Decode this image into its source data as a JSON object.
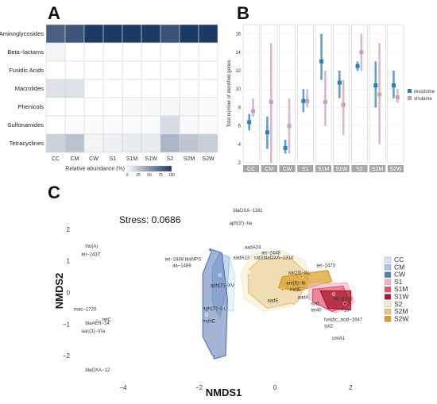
{
  "panels": {
    "a": "A",
    "b": "B",
    "c": "C"
  },
  "colors": {
    "resistome": "#2f7ebc",
    "virulome": "#c9a0bf",
    "groups": {
      "CC": "#d6e6f5",
      "CM": "#a9c4e6",
      "CW": "#5a79b3",
      "S1": "#f3b4bf",
      "S1M": "#e2536b",
      "S1W": "#a5182b",
      "S2": "#f7eccc",
      "S2M": "#e8c585",
      "S2W": "#d79a20"
    }
  },
  "chart_data": [
    {
      "type": "heatmap",
      "panel": "A",
      "columns": [
        "CC",
        "CM",
        "CW",
        "S1",
        "S1M",
        "S1W",
        "S2",
        "S2M",
        "S2W"
      ],
      "rows": [
        "Aminoglycosides",
        "Beta−lactams",
        "Fusidic Acids",
        "Macrolides",
        "Phenicols",
        "Sulfonamides",
        "Tetracyclines"
      ],
      "values": [
        [
          78,
          85,
          100,
          100,
          100,
          100,
          86,
          100,
          100
        ],
        [
          4,
          0,
          0,
          0,
          0,
          0,
          0,
          0,
          0
        ],
        [
          0,
          0,
          0,
          0,
          0,
          0,
          0,
          0,
          0
        ],
        [
          12,
          12,
          0,
          0,
          0,
          0,
          0,
          0,
          0
        ],
        [
          0,
          0,
          0,
          0,
          2,
          2,
          3,
          2,
          1
        ],
        [
          0,
          1,
          1,
          1,
          1,
          1,
          14,
          2,
          1
        ],
        [
          20,
          27,
          4,
          6,
          8,
          8,
          33,
          25,
          21
        ]
      ],
      "legend_title": "Relative abundance (%)",
      "legend_ticks": [
        "0",
        "25",
        "50",
        "75",
        "100"
      ],
      "range": [
        0,
        100
      ]
    },
    {
      "type": "scatter",
      "panel": "B",
      "ylabel": "Total number of identified genes",
      "ylim": [
        2,
        17
      ],
      "yticks": [
        "2",
        "4",
        "6",
        "8",
        "10",
        "12",
        "14",
        "16"
      ],
      "categories": [
        "CC",
        "CM",
        "CW",
        "S1",
        "S1M",
        "S1W",
        "S2",
        "S2M",
        "S2W"
      ],
      "legend": [
        "resistome",
        "virulome"
      ],
      "series": [
        {
          "name": "resistome",
          "mean": [
            6.4,
            5.3,
            3.6,
            8.7,
            13.0,
            10.7,
            12.5,
            10.4,
            10.4
          ],
          "low": [
            5.5,
            3.5,
            3.0,
            7.5,
            11.0,
            9.0,
            12.0,
            8.0,
            9.0
          ],
          "high": [
            7.3,
            7.0,
            4.5,
            10.0,
            16.0,
            12.0,
            13.0,
            13.0,
            12.0
          ]
        },
        {
          "name": "virulome",
          "mean": [
            7.6,
            8.6,
            6.0,
            8.7,
            8.6,
            8.3,
            14.0,
            9.4,
            9.1
          ],
          "low": [
            7.0,
            2.0,
            3.0,
            8.0,
            6.0,
            5.0,
            12.0,
            4.0,
            8.5
          ],
          "high": [
            9.0,
            15.0,
            9.0,
            10.0,
            12.0,
            11.0,
            16.0,
            15.0,
            10.0
          ]
        }
      ]
    },
    {
      "type": "scatter",
      "panel": "C",
      "title": "Stress:  0.0686",
      "xlabel": "NMDS1",
      "ylabel": "NMDS2",
      "xlim": [
        -5.3,
        2.6
      ],
      "ylim": [
        -2.8,
        2.9
      ],
      "xticks": [
        "−4",
        "−2",
        "0",
        "2"
      ],
      "yticks": [
        "2",
        "1",
        "0",
        "−1",
        "−2"
      ],
      "legend": [
        "CC",
        "CM",
        "CW",
        "S1",
        "S1M",
        "S1W",
        "S2",
        "S2M",
        "S2W"
      ],
      "genes": [
        {
          "label": "blaOXA−1161",
          "x": -1.1,
          "y": 2.55
        },
        {
          "label": "aph(3')−Iia",
          "x": -1.2,
          "y": 2.15
        },
        {
          "label": "lnu(A)",
          "x": -5.0,
          "y": 1.42
        },
        {
          "label": "tet−2437",
          "x": -5.1,
          "y": 1.15
        },
        {
          "label": "aadA24",
          "x": -0.8,
          "y": 1.38
        },
        {
          "label": "tet−2448",
          "x": -0.35,
          "y": 1.2
        },
        {
          "label": "aadA13",
          "x": -1.1,
          "y": 1.05
        },
        {
          "label": "cat3",
          "x": -0.55,
          "y": 1.05
        },
        {
          "label": "blaOXA−1314",
          "x": -0.3,
          "y": 1.05
        },
        {
          "label": "tet−2448 blaNPS",
          "x": -2.9,
          "y": 1.0
        },
        {
          "label": "aa−1489",
          "x": -2.7,
          "y": 0.8
        },
        {
          "label": "tet−2473",
          "x": 1.1,
          "y": 0.8
        },
        {
          "label": "aac(3)−IIc",
          "x": 0.35,
          "y": 0.58
        },
        {
          "label": "aph(3')−XV",
          "x": -1.7,
          "y": 0.18
        },
        {
          "label": "ant(6)−Ib",
          "x": 0.3,
          "y": 0.25
        },
        {
          "label": "mdtE",
          "x": 0.4,
          "y": 0.05
        },
        {
          "label": "aadA",
          "x": 0.6,
          "y": -0.2
        },
        {
          "label": "aadE",
          "x": -0.2,
          "y": -0.3
        },
        {
          "label": "aph(3')−Iia",
          "x": -1.9,
          "y": -0.55
        },
        {
          "label": "mdhE",
          "x": -1.9,
          "y": -0.95
        },
        {
          "label": "tet−2435",
          "x": 1.55,
          "y": -0.25
        },
        {
          "label": "sul1",
          "x": 0.95,
          "y": -0.4
        },
        {
          "label": "tet40",
          "x": 0.95,
          "y": -0.6
        },
        {
          "label": "716",
          "x": 1.75,
          "y": -0.6
        },
        {
          "label": "fusidic_acid−1647",
          "x": 1.3,
          "y": -0.9
        },
        {
          "label": "sul2",
          "x": 1.3,
          "y": -1.1
        },
        {
          "label": "cmlA1",
          "x": 1.5,
          "y": -1.5
        },
        {
          "label": "mac−1720",
          "x": -5.3,
          "y": -0.58
        },
        {
          "label": "tetC",
          "x": -4.55,
          "y": -0.9
        },
        {
          "label": "blaAER−14",
          "x": -5.0,
          "y": -1.02
        },
        {
          "label": "aac(3)−VIa",
          "x": -5.1,
          "y": -1.27
        },
        {
          "label": "blaOXA−12",
          "x": -5.0,
          "y": -2.5
        }
      ]
    }
  ]
}
